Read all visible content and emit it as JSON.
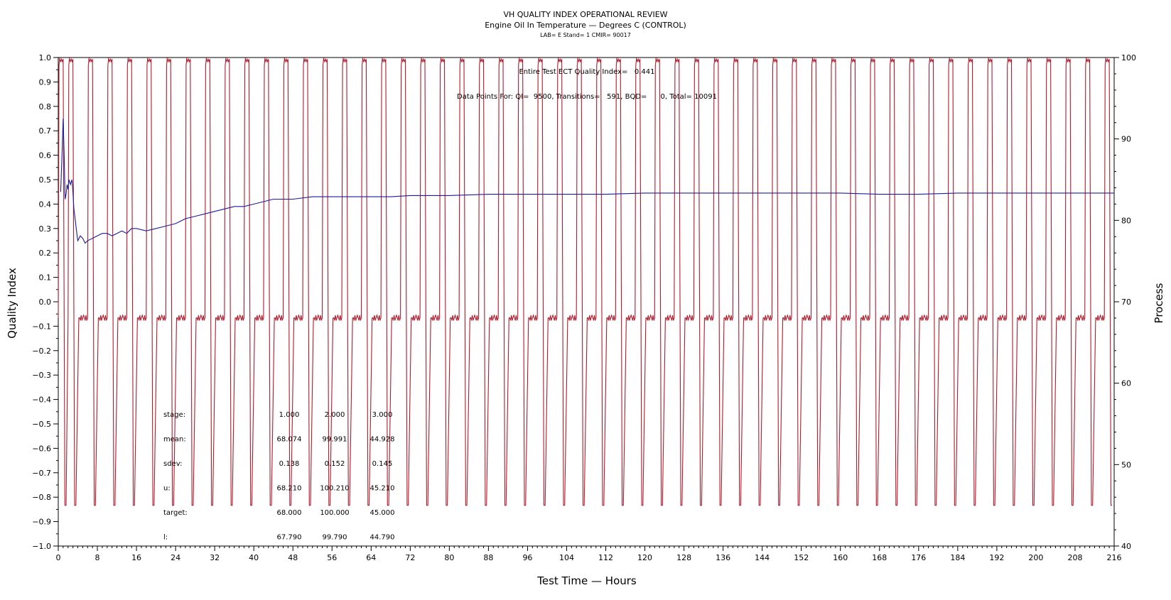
{
  "chart_data": {
    "type": "line",
    "title": "VH QUALITY INDEX OPERATIONAL REVIEW",
    "subtitle": "Engine Oil In Temperature — Degrees C (CONTROL)",
    "subtitle2": "LAB= E Stand= 1 CMIR= 90017",
    "xlabel": "Test Time — Hours",
    "ylabel": "Quality Index",
    "y2label": "Process",
    "xlim": [
      0,
      216
    ],
    "ylim": [
      -1.0,
      1.0
    ],
    "y2lim": [
      40,
      100
    ],
    "x_ticks": [
      "0",
      "8",
      "16",
      "24",
      "32",
      "40",
      "48",
      "56",
      "64",
      "72",
      "80",
      "88",
      "96",
      "104",
      "112",
      "120",
      "128",
      "136",
      "144",
      "152",
      "160",
      "168",
      "176",
      "184",
      "192",
      "200",
      "208",
      "216"
    ],
    "y_ticks": [
      "1.0",
      "0.9",
      "0.8",
      "0.7",
      "0.6",
      "0.5",
      "0.4",
      "0.3",
      "0.2",
      "0.1",
      "0.0",
      "-0.1",
      "-0.2",
      "-0.3",
      "-0.4",
      "-0.5",
      "-0.6",
      "-0.7",
      "-0.8",
      "-0.9",
      "-1.0"
    ],
    "y2_ticks": [
      "100",
      "90",
      "80",
      "70",
      "60",
      "50",
      "40"
    ],
    "annotations": {
      "qi_line": "Entire Test ECT Quality Index=   0.441",
      "points_line": "Data Points For: QI=  9500, Transitions=   591, BQD=      0, Total= 10091"
    },
    "stats_table": {
      "rows": [
        {
          "label": "stage:",
          "values": [
            "1.000",
            "2.000",
            "3.000"
          ]
        },
        {
          "label": "mean:",
          "values": [
            "68.074",
            "99.991",
            "44.928"
          ]
        },
        {
          "label": "sdev:",
          "values": [
            "0.138",
            "0.152",
            "0.145"
          ]
        },
        {
          "label": "u:",
          "values": [
            "68.210",
            "100.210",
            "45.210"
          ]
        },
        {
          "label": "target:",
          "values": [
            "68.000",
            "100.000",
            "45.000"
          ]
        },
        {
          "label": "l:",
          "values": [
            "67.790",
            "99.790",
            "44.790"
          ]
        }
      ]
    },
    "series": [
      {
        "axis": "left",
        "color": "#1c1c9c",
        "points": [
          [
            0.5,
            0.45
          ],
          [
            0.8,
            0.62
          ],
          [
            1.0,
            0.75
          ],
          [
            1.2,
            0.6
          ],
          [
            1.4,
            0.42
          ],
          [
            1.6,
            0.44
          ],
          [
            1.8,
            0.48
          ],
          [
            2.0,
            0.46
          ],
          [
            2.2,
            0.5
          ],
          [
            2.5,
            0.48
          ],
          [
            2.8,
            0.5
          ],
          [
            3.0,
            0.45
          ],
          [
            3.2,
            0.38
          ],
          [
            3.5,
            0.33
          ],
          [
            3.8,
            0.28
          ],
          [
            4.0,
            0.25
          ],
          [
            4.5,
            0.27
          ],
          [
            5,
            0.26
          ],
          [
            5.5,
            0.24
          ],
          [
            6,
            0.25
          ],
          [
            7,
            0.26
          ],
          [
            8,
            0.27
          ],
          [
            9,
            0.28
          ],
          [
            10,
            0.28
          ],
          [
            11,
            0.27
          ],
          [
            12,
            0.28
          ],
          [
            13,
            0.29
          ],
          [
            14,
            0.28
          ],
          [
            15,
            0.3
          ],
          [
            16,
            0.3
          ],
          [
            18,
            0.29
          ],
          [
            20,
            0.3
          ],
          [
            22,
            0.31
          ],
          [
            24,
            0.32
          ],
          [
            26,
            0.34
          ],
          [
            28,
            0.35
          ],
          [
            30,
            0.36
          ],
          [
            32,
            0.37
          ],
          [
            34,
            0.38
          ],
          [
            36,
            0.39
          ],
          [
            38,
            0.39
          ],
          [
            40,
            0.4
          ],
          [
            42,
            0.41
          ],
          [
            44,
            0.42
          ],
          [
            46,
            0.42
          ],
          [
            48,
            0.42
          ],
          [
            52,
            0.43
          ],
          [
            56,
            0.43
          ],
          [
            60,
            0.43
          ],
          [
            64,
            0.43
          ],
          [
            68,
            0.43
          ],
          [
            72,
            0.435
          ],
          [
            80,
            0.435
          ],
          [
            88,
            0.44
          ],
          [
            96,
            0.44
          ],
          [
            104,
            0.44
          ],
          [
            112,
            0.44
          ],
          [
            120,
            0.445
          ],
          [
            128,
            0.445
          ],
          [
            136,
            0.445
          ],
          [
            144,
            0.445
          ],
          [
            152,
            0.445
          ],
          [
            160,
            0.445
          ],
          [
            168,
            0.44
          ],
          [
            176,
            0.44
          ],
          [
            184,
            0.445
          ],
          [
            192,
            0.445
          ],
          [
            200,
            0.445
          ],
          [
            208,
            0.445
          ],
          [
            216,
            0.445
          ]
        ]
      },
      {
        "axis": "right",
        "color": "#b01c2c",
        "cycle_hours": 4,
        "high_start": [
          0,
          2,
          6,
          10,
          14,
          18,
          22,
          26,
          30,
          34,
          38,
          42,
          46,
          50,
          54,
          58,
          62,
          66,
          70,
          74,
          78,
          82,
          86,
          90,
          94,
          98,
          102,
          106,
          110,
          114,
          118,
          122,
          126,
          130,
          134,
          138,
          142,
          146,
          150,
          154,
          158,
          162,
          166,
          170,
          174,
          178,
          182,
          186,
          190,
          194,
          198,
          202,
          206,
          210,
          214
        ],
        "levels": {
          "high": 100,
          "mid": 68,
          "low": 45
        }
      }
    ]
  }
}
